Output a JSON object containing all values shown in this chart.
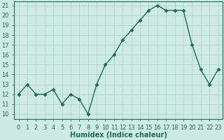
{
  "x": [
    0,
    1,
    2,
    3,
    4,
    5,
    6,
    7,
    8,
    9,
    10,
    11,
    12,
    13,
    14,
    15,
    16,
    17,
    18,
    19,
    20,
    21,
    22,
    23
  ],
  "y": [
    12,
    13,
    12,
    12,
    12.5,
    11,
    12,
    11.5,
    10,
    13,
    15,
    16,
    17.5,
    18.5,
    19.5,
    20.5,
    21,
    20.5,
    20.5,
    20.5,
    17,
    14.5,
    13,
    14.5
  ],
  "xlabel": "Humidex (Indice chaleur)",
  "line_color": "#1b6b5a",
  "marker_color": "#1b6b5a",
  "bg_color": "#ceeae4",
  "grid_color": "#b0d4cc",
  "ylim_min": 9.5,
  "ylim_max": 21.4,
  "xlim_min": -0.5,
  "xlim_max": 23.5,
  "yticks": [
    10,
    11,
    12,
    13,
    14,
    15,
    16,
    17,
    18,
    19,
    20,
    21
  ],
  "xticks": [
    0,
    1,
    2,
    3,
    4,
    5,
    6,
    7,
    8,
    9,
    10,
    11,
    12,
    13,
    14,
    15,
    16,
    17,
    18,
    19,
    20,
    21,
    22,
    23
  ],
  "tick_fontsize": 6,
  "xlabel_fontsize": 7,
  "linewidth": 1.0,
  "markersize": 2.5
}
